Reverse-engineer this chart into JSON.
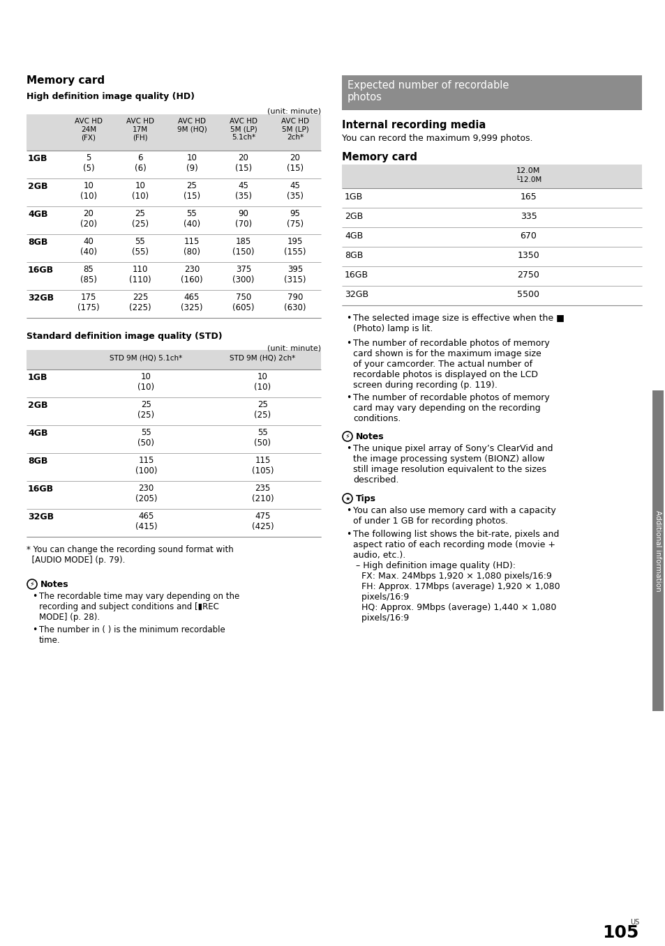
{
  "page_bg": "#ffffff",
  "section_header_bg": "#8c8c8c",
  "section_header_text": "#ffffff",
  "table_header_bg": "#d9d9d9",
  "text_color": "#000000",
  "left_title": "Memory card",
  "left_subtitle1": "High definition image quality (HD)",
  "left_unit": "(unit: minute)",
  "hd_headers": [
    "AVC HD\n24M\n(FX)",
    "AVC HD\n17M\n(FH)",
    "AVC HD\n9M (HQ)",
    "AVC HD\n5M (LP)\n5.1ch*",
    "AVC HD\n5M (LP)\n2ch*"
  ],
  "hd_rows": [
    [
      "1GB",
      "5\n(5)",
      "6\n(6)",
      "10\n(9)",
      "20\n(15)",
      "20\n(15)"
    ],
    [
      "2GB",
      "10\n(10)",
      "10\n(10)",
      "25\n(15)",
      "45\n(35)",
      "45\n(35)"
    ],
    [
      "4GB",
      "20\n(20)",
      "25\n(25)",
      "55\n(40)",
      "90\n(70)",
      "95\n(75)"
    ],
    [
      "8GB",
      "40\n(40)",
      "55\n(55)",
      "115\n(80)",
      "185\n(150)",
      "195\n(155)"
    ],
    [
      "16GB",
      "85\n(85)",
      "110\n(110)",
      "230\n(160)",
      "375\n(300)",
      "395\n(315)"
    ],
    [
      "32GB",
      "175\n(175)",
      "225\n(225)",
      "465\n(325)",
      "750\n(605)",
      "790\n(630)"
    ]
  ],
  "left_subtitle2": "Standard definition image quality (STD)",
  "std_headers": [
    "STD 9M (HQ) 5.1ch*",
    "STD 9M (HQ) 2ch*"
  ],
  "std_rows": [
    [
      "1GB",
      "10\n(10)",
      "10\n(10)"
    ],
    [
      "2GB",
      "25\n(25)",
      "25\n(25)"
    ],
    [
      "4GB",
      "55\n(50)",
      "55\n(50)"
    ],
    [
      "8GB",
      "115\n(100)",
      "115\n(105)"
    ],
    [
      "16GB",
      "230\n(205)",
      "235\n(210)"
    ],
    [
      "32GB",
      "465\n(415)",
      "475\n(425)"
    ]
  ],
  "footnote_star": "* You can change the recording sound format with\n  [AUDIO MODE] (p. 79).",
  "notes_title": "Notes",
  "notes_items": [
    "The recordable time may vary depending on the\nrecording and subject conditions and [▮REC\nMODE] (p. 28).",
    "The number in ( ) is the minimum recordable\ntime."
  ],
  "right_section_header": "Expected number of recordable\nphotos",
  "right_subtitle1": "Internal recording media",
  "right_text1": "You can record the maximum 9,999 photos.",
  "right_subtitle2": "Memory card",
  "photo_rows": [
    [
      "1GB",
      "165"
    ],
    [
      "2GB",
      "335"
    ],
    [
      "4GB",
      "670"
    ],
    [
      "8GB",
      "1350"
    ],
    [
      "16GB",
      "2750"
    ],
    [
      "32GB",
      "5500"
    ]
  ],
  "right_bullets": [
    "The selected image size is effective when the ■\n(Photo) lamp is lit.",
    "The number of recordable photos of memory\ncard shown is for the maximum image size\nof your camcorder. The actual number of\nrecordable photos is displayed on the LCD\nscreen during recording (p. 119).",
    "The number of recordable photos of memory\ncard may vary depending on the recording\nconditions."
  ],
  "right_notes_title": "Notes",
  "right_notes_items": [
    "The unique pixel array of Sony’s ClearVid and\nthe image processing system (BIONZ) allow\nstill image resolution equivalent to the sizes\ndescribed."
  ],
  "right_tips_title": "Tips",
  "right_tips_items": [
    "You can also use memory card with a capacity\nof under 1 GB for recording photos.",
    "The following list shows the bit-rate, pixels and\naspect ratio of each recording mode (movie +\naudio, etc.).\n – High definition image quality (HD):\n   FX: Max. 24Mbps 1,920 × 1,080 pixels/16:9\n   FH: Approx. 17Mbps (average) 1,920 × 1,080\n   pixels/16:9\n   HQ: Approx. 9Mbps (average) 1,440 × 1,080\n   pixels/16:9"
  ],
  "right_sidebar_text": "Additional information",
  "page_number": "105",
  "page_label": "US"
}
